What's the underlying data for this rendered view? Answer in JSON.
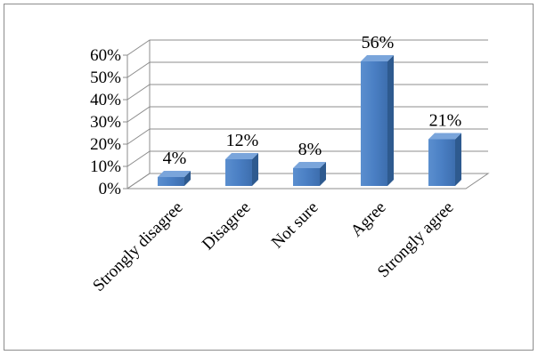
{
  "chart_data": {
    "type": "bar",
    "style": "3d-column",
    "categories": [
      "Strongly disagree",
      "Disagree",
      "Not sure",
      "Agree",
      "Strongly agree"
    ],
    "values": [
      4,
      12,
      8,
      56,
      21
    ],
    "data_labels": [
      "4%",
      "12%",
      "8%",
      "56%",
      "21%"
    ],
    "ylim": [
      0,
      60
    ],
    "yticks": [
      "0%",
      "10%",
      "20%",
      "30%",
      "40%",
      "50%",
      "60%"
    ],
    "grid": true,
    "legend": "none",
    "bar_color": "#4F81BD",
    "title": "",
    "xlabel": "",
    "ylabel": ""
  }
}
